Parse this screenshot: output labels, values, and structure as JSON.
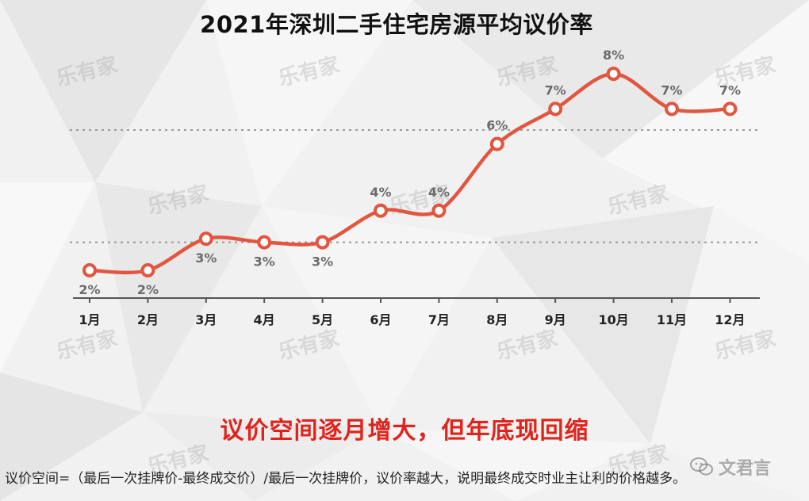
{
  "title": "2021年深圳二手住宅房源平均议价率",
  "subtitle": "议价空间逐月增大，但年底现回缩",
  "note": "议价空间=（最后一次挂牌价-最终成交价）/最后一次挂牌价，议价率越大，说明最终成交时业主让利的价格越多。",
  "watermark": "乐有家",
  "wechat_label": "文君言",
  "colors": {
    "line": "#e1563f",
    "point_fill": "#ffffff",
    "label": "#6b6b6b",
    "subtitle": "#e0241c"
  },
  "chart_data": {
    "type": "line",
    "title": "2021年深圳二手住宅房源平均议价率",
    "categories": [
      "1月",
      "2月",
      "3月",
      "4月",
      "5月",
      "6月",
      "7月",
      "8月",
      "9月",
      "10月",
      "11月",
      "12月"
    ],
    "values": [
      2.2,
      2.2,
      3.1,
      3.0,
      3.0,
      3.9,
      3.9,
      5.8,
      6.8,
      7.8,
      6.8,
      6.8
    ],
    "data_labels": [
      "2%",
      "2%",
      "3%",
      "3%",
      "3%",
      "4%",
      "4%",
      "6%",
      "7%",
      "8%",
      "7%",
      "7%"
    ],
    "reference_lines": [
      3.0,
      6.2
    ],
    "ylim": [
      1.5,
      9.0
    ],
    "grid": false,
    "xlabel": "",
    "ylabel": ""
  }
}
